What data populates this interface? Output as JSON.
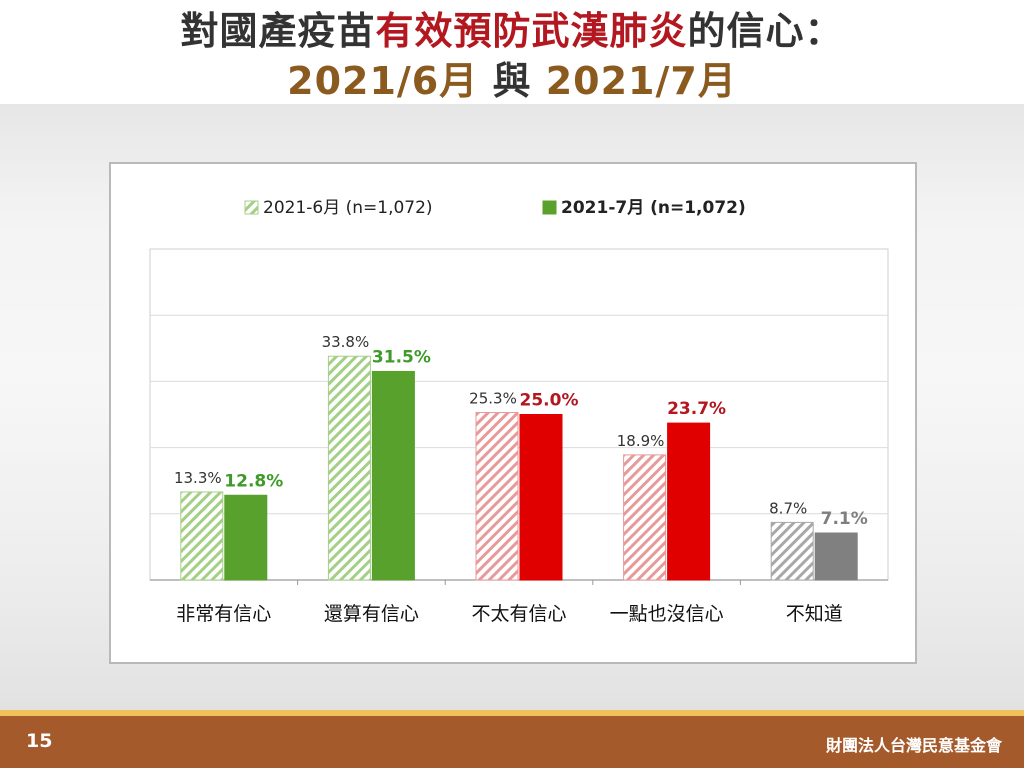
{
  "title": {
    "line1_a": "對國產疫苗",
    "line1_b": "有效預防武漢肺炎",
    "line1_c": "的信心：",
    "line2_a": "2021/6月",
    "line2_b": "與",
    "line2_c": "2021/7月"
  },
  "footer": {
    "page_number": "15",
    "org_name": "財團法人台灣民意基金會"
  },
  "colors": {
    "green_dark": "#58a12c",
    "green_light_hatch": "#a4cf86",
    "red_dark": "#e00000",
    "red_light_hatch": "#e89a9a",
    "gray_dark": "#808080",
    "gray_light_hatch": "#a8a8a8",
    "label_green": "#3f9a2a",
    "label_red": "#b3171f",
    "label_gray": "#7f7f7f",
    "label_plain": "#333333"
  },
  "chart_data": {
    "type": "bar",
    "categories": [
      "非常有信心",
      "還算有信心",
      "不太有信心",
      "一點也沒信心",
      "不知道"
    ],
    "series": [
      {
        "name": "2021-6月",
        "sample": "(n=1,072)",
        "style": "hatched",
        "values": [
          13.3,
          33.8,
          25.3,
          18.9,
          8.7
        ]
      },
      {
        "name": "2021-7月",
        "sample": "(n=1,072)",
        "style": "solid",
        "values": [
          12.8,
          31.5,
          25.0,
          23.7,
          7.1
        ]
      }
    ],
    "data_labels": [
      [
        "13.3%",
        "33.8%",
        "25.3%",
        "18.9%",
        "8.7%"
      ],
      [
        "12.8%",
        "31.5%",
        "25.0%",
        "23.7%",
        "7.1%"
      ]
    ],
    "category_colors": [
      "green",
      "green",
      "red",
      "red",
      "gray"
    ],
    "ylim": [
      0,
      50
    ],
    "grid": true,
    "legend_position": "top"
  }
}
